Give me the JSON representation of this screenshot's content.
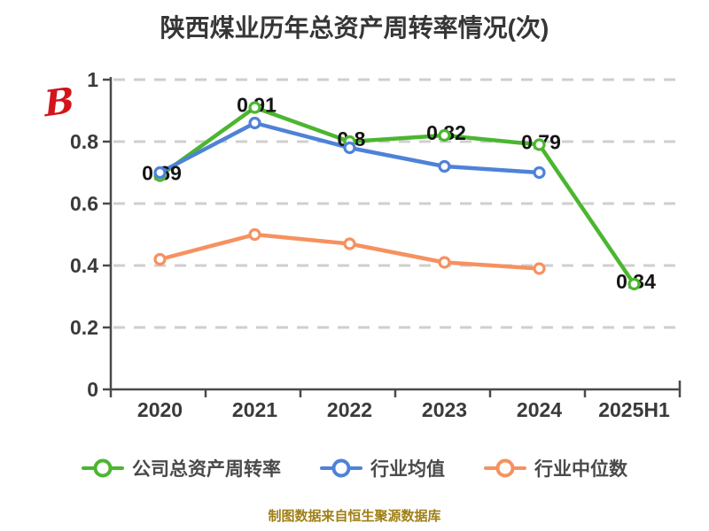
{
  "title": "陕西煤业历年总资产周转率情况(次)",
  "watermark": {
    "glyph": "B"
  },
  "footer_note": "制图数据来自恒生聚源数据库",
  "colors": {
    "company": "#4bb62f",
    "industry_avg": "#4e82d8",
    "industry_median": "#f6915f",
    "grid": "#cfcfcf",
    "axis": "#4a4a4a",
    "tick_label": "#3a3a3a",
    "data_label": "#141414",
    "marker_fill": "#ffffff",
    "title": "#363636",
    "legend_text": "#4a4a4a",
    "footer": "#a07f15",
    "watermark": "#d2151b"
  },
  "chart_data": {
    "type": "line",
    "title": "陕西煤业历年总资产周转率情况(次)",
    "categories": [
      "2020",
      "2021",
      "2022",
      "2023",
      "2024",
      "2025H1"
    ],
    "series": [
      {
        "name": "公司总资产周转率",
        "color": "#4bb62f",
        "values": [
          0.69,
          0.91,
          0.8,
          0.82,
          0.79,
          0.34
        ],
        "point_labels": [
          "0.69",
          "0.91",
          "0.8",
          "0.82",
          "0.79",
          "0.34"
        ]
      },
      {
        "name": "行业均值",
        "color": "#4e82d8",
        "values": [
          0.7,
          0.86,
          0.78,
          0.72,
          0.7,
          null
        ],
        "point_labels": null
      },
      {
        "name": "行业中位数",
        "color": "#f6915f",
        "values": [
          0.42,
          0.5,
          0.47,
          0.41,
          0.39,
          null
        ],
        "point_labels": null
      }
    ],
    "xlabel": "",
    "ylabel": "",
    "ylim": [
      0,
      1
    ],
    "y_ticks": [
      {
        "v": 0.0,
        "label": "0"
      },
      {
        "v": 0.2,
        "label": "0.2"
      },
      {
        "v": 0.4,
        "label": "0.4"
      },
      {
        "v": 0.6,
        "label": "0.6"
      },
      {
        "v": 0.8,
        "label": "0.8"
      },
      {
        "v": 1.0,
        "label": "1"
      }
    ],
    "grid": "dashed-horizontal",
    "legend_position": "bottom",
    "data_source_note": "制图数据来自恒生聚源数据库"
  }
}
